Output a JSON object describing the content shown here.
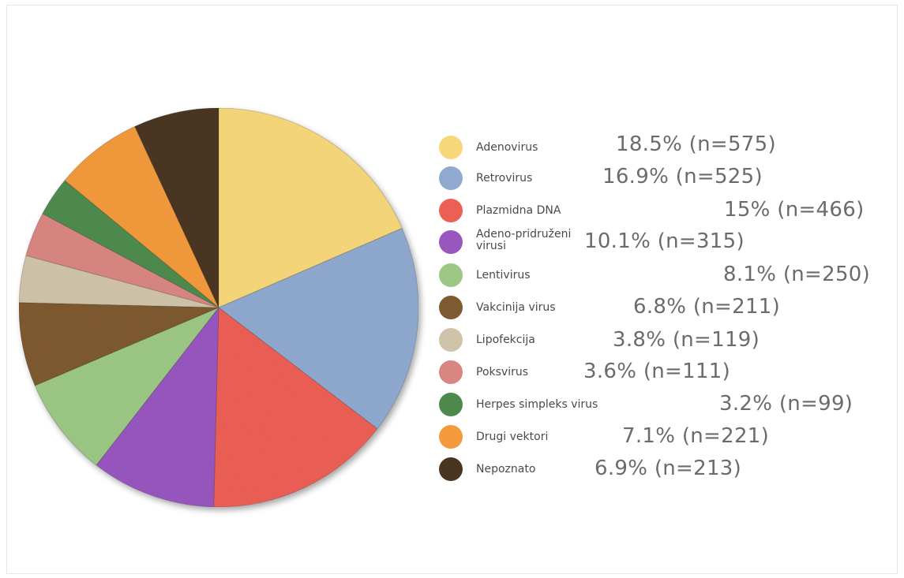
{
  "chart_data": {
    "type": "pie",
    "title": "",
    "slices": [
      {
        "label": "Adenovirus",
        "percent": 18.5,
        "n": 575,
        "display": "18.5% (n=575)",
        "color": "#f6d77a"
      },
      {
        "label": "Retrovirus",
        "percent": 16.9,
        "n": 525,
        "display": "16.9% (n=525)",
        "color": "#8fa9cf"
      },
      {
        "label": "Plazmidna DNA",
        "percent": 15,
        "n": 466,
        "display": "15% (n=466)",
        "color": "#ec5f55"
      },
      {
        "label": "Adeno-pridruženi virusi",
        "percent": 10.1,
        "n": 315,
        "display": "10.1% (n=315)",
        "color": "#9856bf"
      },
      {
        "label": "Lentivirus",
        "percent": 8.1,
        "n": 250,
        "display": "8.1% (n=250)",
        "color": "#9cc784"
      },
      {
        "label": "Vakcinija virus",
        "percent": 6.8,
        "n": 211,
        "display": "6.8% (n=211)",
        "color": "#7e5a30"
      },
      {
        "label": "Lipofekcija",
        "percent": 3.8,
        "n": 119,
        "display": "3.8% (n=119)",
        "color": "#cfc3aa"
      },
      {
        "label": "Poksvirus",
        "percent": 3.6,
        "n": 111,
        "display": "3.6% (n=111)",
        "color": "#d98682"
      },
      {
        "label": "Herpes simpleks virus",
        "percent": 3.2,
        "n": 99,
        "display": "3.2% (n=99)",
        "color": "#4e8a4e"
      },
      {
        "label": "Drugi vektori",
        "percent": 7.1,
        "n": 221,
        "display": "7.1% (n=221)",
        "color": "#f29a3c"
      },
      {
        "label": "Nepoznato",
        "percent": 6.9,
        "n": 213,
        "display": "6.9% (n=213)",
        "color": "#4a3522"
      }
    ],
    "legend_position": "right"
  }
}
